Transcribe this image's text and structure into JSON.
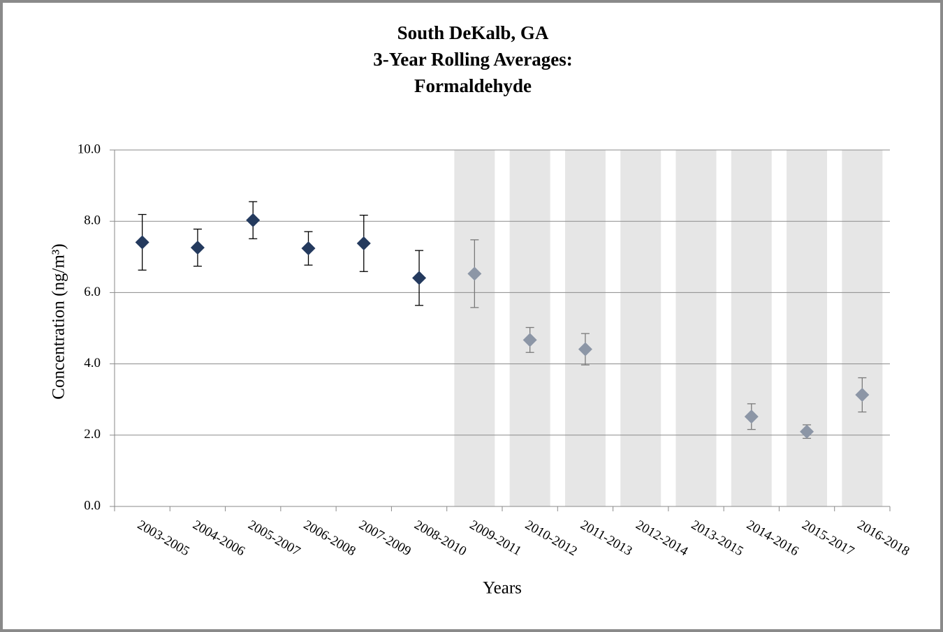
{
  "chart_data": {
    "type": "scatter-errorbar",
    "title": [
      "South DeKalb, GA",
      "3-Year Rolling Averages:",
      "Formaldehyde"
    ],
    "x_label": "Years",
    "y_label": "Concentration (ng/m³)",
    "categories": [
      "2003-2005",
      "2004-2006",
      "2005-2007",
      "2006-2008",
      "2007-2009",
      "2008-2010",
      "2009-2011",
      "2010-2012",
      "2011-2013",
      "2012-2014",
      "2013-2015",
      "2014-2016",
      "2015-2017",
      "2016-2018"
    ],
    "values": [
      7.41,
      7.26,
      8.03,
      7.24,
      7.38,
      6.41,
      6.53,
      4.67,
      4.41,
      null,
      null,
      2.52,
      2.1,
      3.13
    ],
    "errors": [
      0.78,
      0.52,
      0.52,
      0.47,
      0.79,
      0.77,
      0.95,
      0.35,
      0.44,
      null,
      null,
      0.36,
      0.19,
      0.48
    ],
    "colors": [
      "#243a5e",
      "#243a5e",
      "#243a5e",
      "#243a5e",
      "#243a5e",
      "#243a5e",
      "#8c96a6",
      "#8c96a6",
      "#8c96a6",
      "#8c96a6",
      "#8c96a6",
      "#8c96a6",
      "#8c96a6",
      "#8c96a6"
    ],
    "shaded": [
      false,
      false,
      false,
      false,
      false,
      false,
      true,
      true,
      true,
      true,
      true,
      true,
      true,
      true
    ],
    "shade_color": "#e6e6e6",
    "ylim": [
      0,
      10
    ],
    "yticks": [
      {
        "value": 0,
        "label": "0.0"
      },
      {
        "value": 2,
        "label": "2.0"
      },
      {
        "value": 4,
        "label": "4.0"
      },
      {
        "value": 6,
        "label": "6.0"
      },
      {
        "value": 8,
        "label": "8.0"
      },
      {
        "value": 10,
        "label": "10.0"
      }
    ],
    "grid": true
  }
}
